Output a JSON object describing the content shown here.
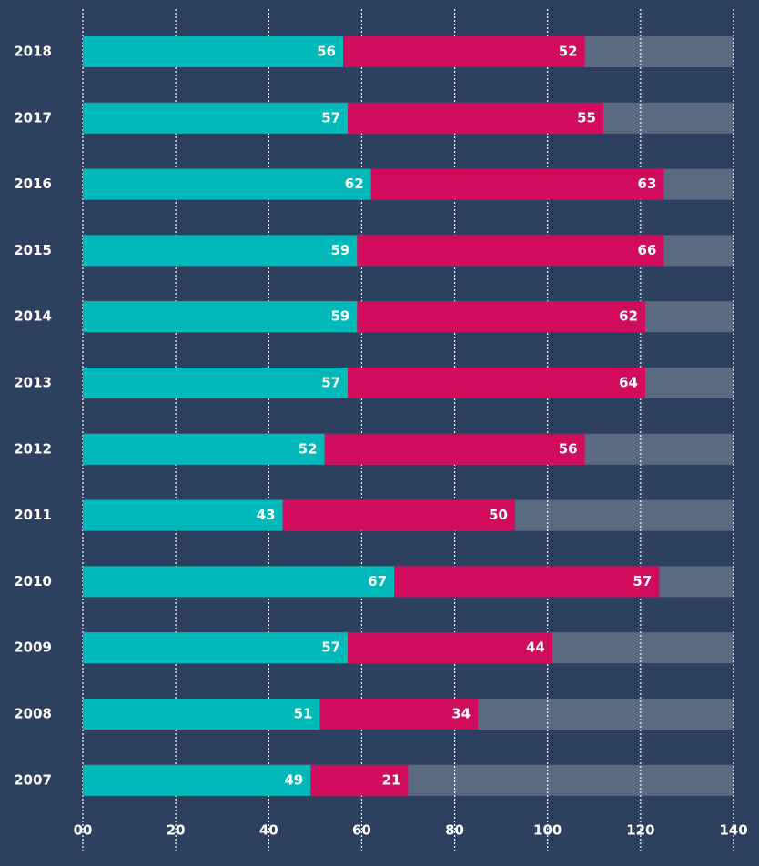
{
  "chart_data": {
    "type": "stacked_barh",
    "categories": [
      "2018",
      "2017",
      "2016",
      "2015",
      "2014",
      "2013",
      "2012",
      "2011",
      "2010",
      "2009",
      "2008",
      "2007"
    ],
    "series": [
      {
        "color": "#00b9b8",
        "values": [
          56,
          57,
          62,
          59,
          59,
          57,
          52,
          43,
          67,
          57,
          51,
          49
        ]
      },
      {
        "color": "#d10c5d",
        "values": [
          52,
          55,
          63,
          66,
          62,
          64,
          56,
          50,
          57,
          44,
          34,
          21
        ]
      }
    ],
    "track_color": "#5a6a80",
    "xlim": [
      0,
      140
    ],
    "xticks": [
      {
        "value": 0,
        "label": "00"
      },
      20,
      40,
      60,
      80,
      100,
      120,
      140
    ],
    "grid": true
  }
}
